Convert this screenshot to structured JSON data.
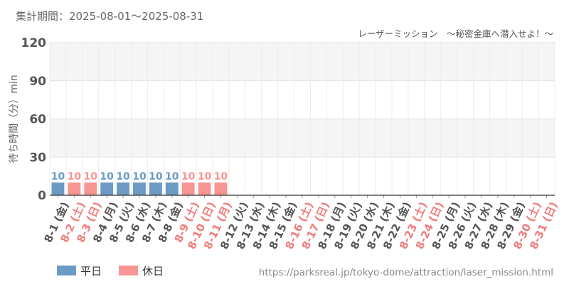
{
  "header": {
    "period": "集計期間：2025-08-01～2025-08-31",
    "subtitle": "レーザーミッション　～秘密金庫へ潜入せよ！～"
  },
  "footer": {
    "url": "https://parksreal.jp/tokyo-dome/attraction/laser_mission.html"
  },
  "colors": {
    "weekday": "#6b9ac4",
    "holiday": "#f79593",
    "weekday_text": "#555555",
    "holiday_text": "#f07b7b",
    "label_weekday": "#6b9ac4",
    "label_holiday": "#f79593"
  },
  "chart_data": {
    "type": "bar",
    "ylabel": "待ち時間（分）min",
    "ylim": [
      0,
      120
    ],
    "yticks": [
      0,
      30,
      60,
      90,
      120
    ],
    "grid": true,
    "legend": {
      "position": "bottom-left",
      "entries": [
        {
          "name": "平日",
          "key": "weekday"
        },
        {
          "name": "休日",
          "key": "holiday"
        }
      ]
    },
    "categories": [
      "8-1 (金)",
      "8-2 (土)",
      "8-3 (日)",
      "8-4 (月)",
      "8-5 (火)",
      "8-6 (水)",
      "8-7 (木)",
      "8-8 (金)",
      "8-9 (土)",
      "8-10 (日)",
      "8-11 (月)",
      "8-12 (火)",
      "8-13 (水)",
      "8-14 (木)",
      "8-15 (金)",
      "8-16 (土)",
      "8-17 (日)",
      "8-18 (月)",
      "8-19 (火)",
      "8-20 (水)",
      "8-21 (木)",
      "8-22 (金)",
      "8-23 (土)",
      "8-24 (日)",
      "8-25 (月)",
      "8-26 (火)",
      "8-27 (水)",
      "8-28 (木)",
      "8-29 (金)",
      "8-30 (土)",
      "8-31 (日)"
    ],
    "day_type": [
      "weekday",
      "holiday",
      "holiday",
      "weekday",
      "weekday",
      "weekday",
      "weekday",
      "weekday",
      "holiday",
      "holiday",
      "holiday",
      "weekday",
      "weekday",
      "weekday",
      "weekday",
      "holiday",
      "holiday",
      "weekday",
      "weekday",
      "weekday",
      "weekday",
      "weekday",
      "holiday",
      "holiday",
      "weekday",
      "weekday",
      "weekday",
      "weekday",
      "weekday",
      "holiday",
      "holiday"
    ],
    "values": [
      10,
      10,
      10,
      10,
      10,
      10,
      10,
      10,
      10,
      10,
      10,
      null,
      null,
      null,
      null,
      null,
      null,
      null,
      null,
      null,
      null,
      null,
      null,
      null,
      null,
      null,
      null,
      null,
      null,
      null,
      null
    ]
  }
}
